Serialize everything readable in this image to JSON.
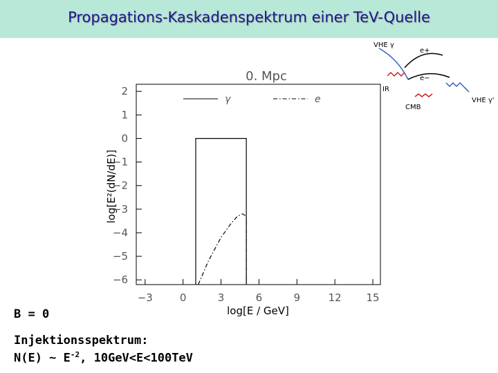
{
  "slide": {
    "title": "Propagations-Kaskadenspektrum einer TeV-Quelle",
    "field": "B = 0",
    "injection_heading": "Injektionsspektrum:",
    "injection_formula": "N(E) ~ E",
    "injection_exponent": "-2",
    "injection_range": ", 10GeV<E<100TeV"
  },
  "diagram": {
    "labels": [
      "VHE γ",
      "e+",
      "e−",
      "IR",
      "CMB",
      "VHE γ'"
    ]
  },
  "chart_data": {
    "type": "line",
    "title": "0. Mpc",
    "x_label": "log[E / GeV]",
    "y_label": "log[E²(dN/dE)]",
    "xlim": [
      -3.7,
      15.6
    ],
    "ylim": [
      -6.2,
      2.3
    ],
    "xticks": [
      {
        "value": -3,
        "label": "−3"
      },
      0,
      3,
      6,
      9,
      12,
      15
    ],
    "yticks": [
      2,
      1,
      0,
      {
        "value": -1,
        "label": "−1"
      },
      {
        "value": -2,
        "label": "−2"
      },
      {
        "value": -3,
        "label": "−3"
      },
      {
        "value": -4,
        "label": "−4"
      },
      {
        "value": -5,
        "label": "−5"
      },
      {
        "value": -6,
        "label": "−6"
      }
    ],
    "series": [
      {
        "name": "γ",
        "color": "#000000",
        "dash": "solid",
        "x": [
          1,
          1,
          5,
          5
        ],
        "values": [
          -6.2,
          0,
          0,
          -6.2
        ]
      },
      {
        "name": "e",
        "color": "#000000",
        "dash": "dashdot",
        "x": [
          1.2,
          2,
          3,
          3.8,
          4.3,
          4.7,
          5,
          5
        ],
        "values": [
          -6.2,
          -5.2,
          -4.2,
          -3.6,
          -3.3,
          -3.2,
          -3.3,
          -6.2
        ]
      }
    ]
  }
}
